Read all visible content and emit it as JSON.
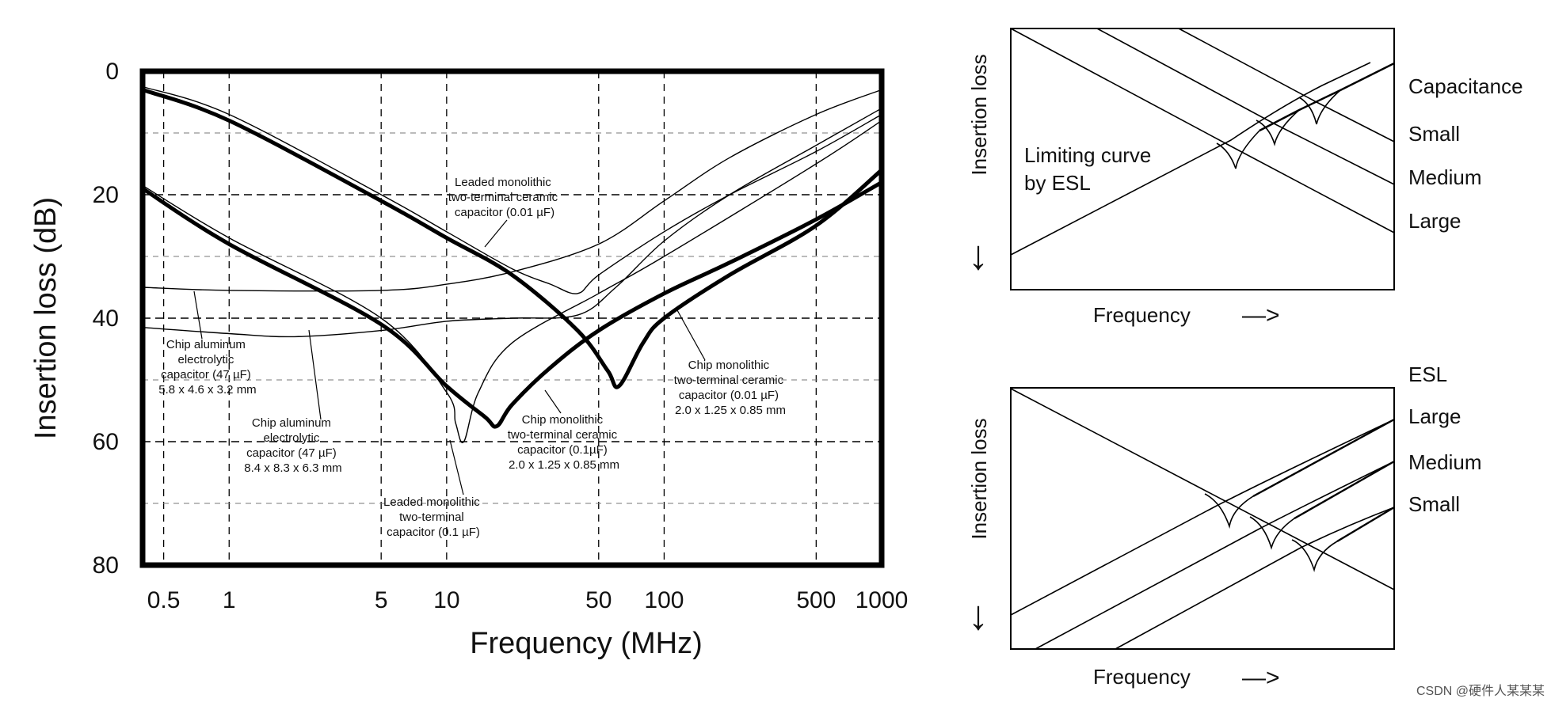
{
  "chart_data": [
    {
      "type": "line",
      "title": "",
      "xlabel": "Frequency (MHz)",
      "ylabel": "Insertion loss (dB)",
      "xscale": "log",
      "xlim": [
        0.4,
        1000
      ],
      "ylim": [
        0,
        80
      ],
      "y_inverted": true,
      "grid": true,
      "x_ticks": [
        {
          "value": 0.5,
          "label": "0.5"
        },
        {
          "value": 1,
          "label": "1"
        },
        {
          "value": 5,
          "label": "5"
        },
        {
          "value": 10,
          "label": "10"
        },
        {
          "value": 50,
          "label": "50"
        },
        {
          "value": 100,
          "label": "100"
        },
        {
          "value": 500,
          "label": "500"
        },
        {
          "value": 1000,
          "label": "1000"
        }
      ],
      "y_ticks": [
        {
          "value": 0,
          "label": "0"
        },
        {
          "value": 20,
          "label": "20"
        },
        {
          "value": 40,
          "label": "40"
        },
        {
          "value": 60,
          "label": "60"
        },
        {
          "value": 80,
          "label": "80"
        }
      ],
      "series": [
        {
          "name": "Chip monolithic two-terminal ceramic capacitor (0.01 µF)",
          "weight": "bold",
          "x": [
            0.4,
            1,
            5,
            10,
            20,
            40,
            55,
            62,
            80,
            100,
            200,
            500,
            1000
          ],
          "y": [
            3,
            8,
            21,
            27,
            33,
            42,
            48.5,
            51,
            44,
            40,
            33,
            25,
            16
          ]
        },
        {
          "name": "Chip monolithic two-terminal ceramic capacitor (0.1µF)",
          "weight": "bold",
          "x": [
            0.4,
            1,
            5,
            10,
            15,
            17,
            20,
            30,
            50,
            100,
            200,
            500,
            1000
          ],
          "y": [
            19,
            28,
            41,
            51,
            56,
            57.5,
            54,
            48,
            42,
            36,
            31,
            24,
            18
          ]
        },
        {
          "name": "Leaded monolithic two-terminal ceramic capacitor (0.01 µF)",
          "weight": "thin",
          "x": [
            0.4,
            1,
            5,
            10,
            20,
            30,
            40,
            50,
            100,
            200,
            500,
            1000
          ],
          "y": [
            2.5,
            7,
            20,
            26,
            32,
            34.5,
            36,
            33,
            26,
            20,
            13,
            7
          ]
        },
        {
          "name": "Leaded monolithic two-terminal capacitor (0.1 µF)",
          "weight": "thin",
          "x": [
            0.4,
            1,
            5,
            10,
            11,
            12,
            14,
            20,
            50,
            100,
            500,
            1000
          ],
          "y": [
            18.5,
            27,
            40,
            52,
            57,
            60,
            52,
            44,
            36,
            30,
            15,
            8
          ]
        },
        {
          "name": "Chip aluminum electrolytic capacitor (47 µF) 5.8 x 4.6 x 3.2 mm",
          "weight": "thin",
          "x": [
            0.4,
            1,
            5,
            10,
            20,
            50,
            100,
            200,
            500,
            1000
          ],
          "y": [
            35,
            35.5,
            35.5,
            34.5,
            32.5,
            28,
            21,
            14,
            7,
            3
          ]
        },
        {
          "name": "Chip aluminum electrolytic capacitor (47 µF) 8.4 x 8.3 x 6.3 mm",
          "weight": "thin",
          "x": [
            0.4,
            1,
            2,
            5,
            10,
            20,
            40,
            60,
            100,
            200,
            500,
            1000
          ],
          "y": [
            41.5,
            42.5,
            43,
            42,
            40.5,
            40,
            39.5,
            35,
            27.5,
            20,
            12,
            6
          ]
        }
      ],
      "annotations": [
        {
          "lines": [
            "Leaded monolithic",
            "two-terminal ceramic",
            "capacitor (0.01 µF)"
          ]
        },
        {
          "lines": [
            "Chip aluminum",
            "electrolytic",
            "capacitor (47 µF)",
            "5.8 x 4.6 x 3.2 mm"
          ]
        },
        {
          "lines": [
            "Chip aluminum",
            "electrolytic",
            "capacitor (47 µF)",
            "8.4 x 8.3 x 6.3 mm"
          ]
        },
        {
          "lines": [
            "Leaded monolithic",
            "two-terminal",
            "capacitor (0.1 µF)"
          ]
        },
        {
          "lines": [
            "Chip monolithic",
            "two-terminal ceramic",
            "capacitor (0.1µF)",
            "2.0 x 1.25 x 0.85 mm"
          ]
        },
        {
          "lines": [
            "Chip monolithic",
            "two-terminal ceramic",
            "capacitor (0.01 µF)",
            "2.0 x 1.25 x 0.85 mm"
          ]
        }
      ]
    },
    {
      "type": "line",
      "title": "",
      "xlabel": "Frequency",
      "ylabel": "Insertion loss",
      "header_label": "Capacitance",
      "series_labels": [
        "Small",
        "Medium",
        "Large"
      ],
      "annotation": [
        "Limiting curve",
        "by ESL"
      ],
      "axis_arrow_glyph": "↓",
      "freq_arrow_glyph": "—>"
    },
    {
      "type": "line",
      "title": "",
      "xlabel": "Frequency",
      "ylabel": "Insertion loss",
      "header_label": "ESL",
      "series_labels": [
        "Large",
        "Medium",
        "Small"
      ],
      "axis_arrow_glyph": "↓",
      "freq_arrow_glyph": "—>"
    }
  ],
  "watermark": "CSDN @硬件人某某某"
}
